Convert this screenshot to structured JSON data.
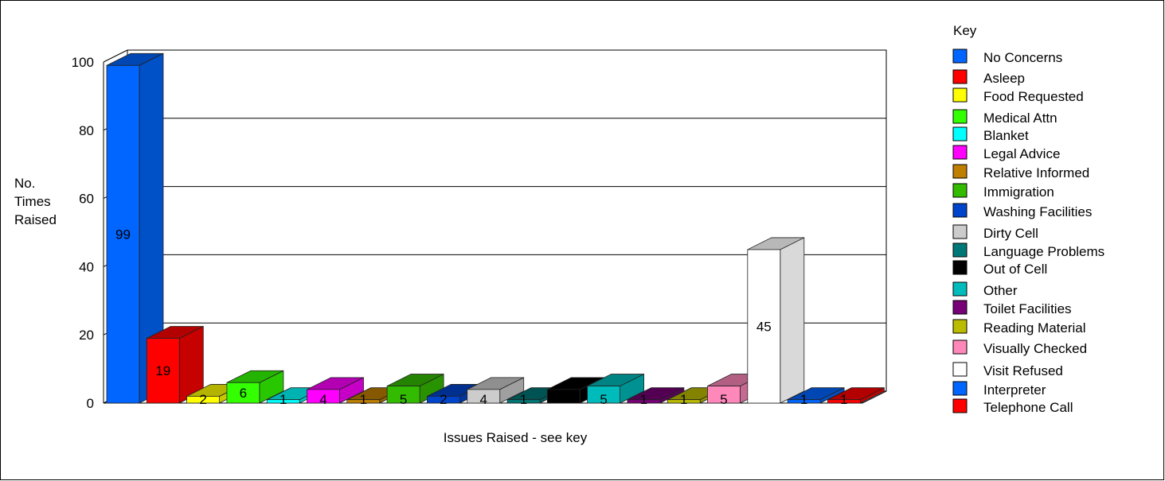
{
  "chart_data": {
    "type": "bar",
    "title": "",
    "ylabel": "No. Times Raised",
    "ylabel_lines": [
      "No.",
      "Times",
      "Raised"
    ],
    "xlabel": "Issues Raised - see key",
    "ylim": [
      0,
      100
    ],
    "yticks": [
      0,
      20,
      40,
      60,
      80,
      100
    ],
    "grid": true,
    "legend_title": "Key",
    "legend_position": "right",
    "categories": [
      "No Concerns",
      "Asleep",
      "Food Requested",
      "Medical Attn",
      "Blanket",
      "Legal Advice",
      "Relative Informed",
      "Immigration",
      "Washing Facilities",
      "Dirty Cell",
      "Language Problems",
      "Out of Cell",
      "Other",
      "Toilet Facilities",
      "Reading Material",
      "Visually Checked",
      "Visit Refused",
      "Interpreter",
      "Telephone Call"
    ],
    "values": [
      99,
      19,
      2,
      6,
      1,
      4,
      1,
      5,
      2,
      4,
      1,
      4,
      5,
      1,
      1,
      5,
      45,
      1,
      1
    ],
    "data_labels": [
      "99",
      "19",
      "2",
      "6",
      "1",
      "4",
      "1",
      "5",
      "2",
      "4",
      "1",
      "",
      "5",
      "1",
      "1",
      "5",
      "45",
      "1",
      "1"
    ],
    "colors": [
      "#0066ff",
      "#ff0000",
      "#ffff00",
      "#33ff00",
      "#00ffff",
      "#ff00ff",
      "#bf7f00",
      "#33bb00",
      "#0044cc",
      "#cccccc",
      "#007777",
      "#000000",
      "#00bbbb",
      "#770077",
      "#bbbb00",
      "#ff88bb",
      "#ffffff",
      "#0066ff",
      "#ff0000"
    ]
  }
}
